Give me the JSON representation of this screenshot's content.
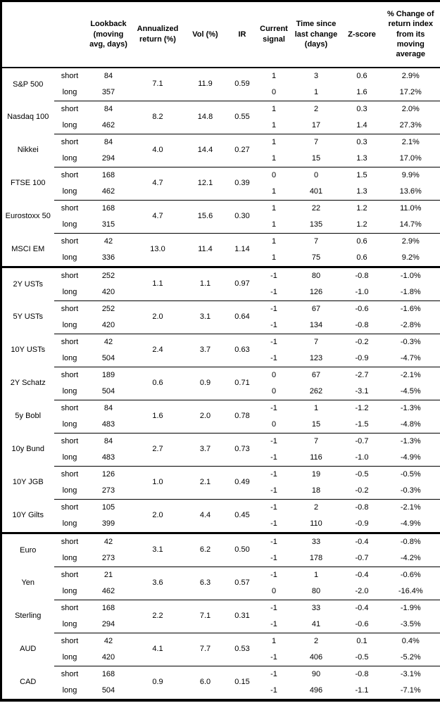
{
  "table": {
    "headers": {
      "asset": "",
      "leg": "",
      "lookback": "Lookback\n(moving\navg, days)",
      "annualized_return": "Annualized\nreturn (%)",
      "vol": "Vol (%)",
      "ir": "IR",
      "signal": "Current\nsignal",
      "time_since": "Time since\nlast change\n(days)",
      "zscore": "Z-score",
      "pct_change": "% Change of\nreturn index\nfrom its\nmoving\naverage"
    },
    "groups": [
      {
        "asset": "S&P 500",
        "section": "equities",
        "annualized_return": "7.1",
        "vol": "11.9",
        "ir": "0.59",
        "rows": [
          {
            "leg": "short",
            "lookback": "84",
            "signal": "1",
            "time": "3",
            "zscore": "0.6",
            "pct": "2.9%"
          },
          {
            "leg": "long",
            "lookback": "357",
            "signal": "0",
            "time": "1",
            "zscore": "1.6",
            "pct": "17.2%"
          }
        ]
      },
      {
        "asset": "Nasdaq 100",
        "section": "equities",
        "annualized_return": "8.2",
        "vol": "14.8",
        "ir": "0.55",
        "rows": [
          {
            "leg": "short",
            "lookback": "84",
            "signal": "1",
            "time": "2",
            "zscore": "0.3",
            "pct": "2.0%"
          },
          {
            "leg": "long",
            "lookback": "462",
            "signal": "1",
            "time": "17",
            "zscore": "1.4",
            "pct": "27.3%"
          }
        ]
      },
      {
        "asset": "Nikkei",
        "section": "equities",
        "annualized_return": "4.0",
        "vol": "14.4",
        "ir": "0.27",
        "rows": [
          {
            "leg": "short",
            "lookback": "84",
            "signal": "1",
            "time": "7",
            "zscore": "0.3",
            "pct": "2.1%"
          },
          {
            "leg": "long",
            "lookback": "294",
            "signal": "1",
            "time": "15",
            "zscore": "1.3",
            "pct": "17.0%"
          }
        ]
      },
      {
        "asset": "FTSE 100",
        "section": "equities",
        "annualized_return": "4.7",
        "vol": "12.1",
        "ir": "0.39",
        "rows": [
          {
            "leg": "short",
            "lookback": "168",
            "signal": "0",
            "time": "0",
            "zscore": "1.5",
            "pct": "9.9%"
          },
          {
            "leg": "long",
            "lookback": "462",
            "signal": "1",
            "time": "401",
            "zscore": "1.3",
            "pct": "13.6%"
          }
        ]
      },
      {
        "asset": "Eurostoxx 50",
        "section": "equities",
        "annualized_return": "4.7",
        "vol": "15.6",
        "ir": "0.30",
        "rows": [
          {
            "leg": "short",
            "lookback": "168",
            "signal": "1",
            "time": "22",
            "zscore": "1.2",
            "pct": "11.0%"
          },
          {
            "leg": "long",
            "lookback": "315",
            "signal": "1",
            "time": "135",
            "zscore": "1.2",
            "pct": "14.7%"
          }
        ]
      },
      {
        "asset": "MSCI EM",
        "section": "equities",
        "annualized_return": "13.0",
        "vol": "11.4",
        "ir": "1.14",
        "rows": [
          {
            "leg": "short",
            "lookback": "42",
            "signal": "1",
            "time": "7",
            "zscore": "0.6",
            "pct": "2.9%"
          },
          {
            "leg": "long",
            "lookback": "336",
            "signal": "1",
            "time": "75",
            "zscore": "0.6",
            "pct": "9.2%"
          }
        ]
      },
      {
        "asset": "2Y USTs",
        "section": "bonds",
        "annualized_return": "1.1",
        "vol": "1.1",
        "ir": "0.97",
        "rows": [
          {
            "leg": "short",
            "lookback": "252",
            "signal": "-1",
            "time": "80",
            "zscore": "-0.8",
            "pct": "-1.0%"
          },
          {
            "leg": "long",
            "lookback": "420",
            "signal": "-1",
            "time": "126",
            "zscore": "-1.0",
            "pct": "-1.8%"
          }
        ]
      },
      {
        "asset": "5Y USTs",
        "section": "bonds",
        "annualized_return": "2.0",
        "vol": "3.1",
        "ir": "0.64",
        "rows": [
          {
            "leg": "short",
            "lookback": "252",
            "signal": "-1",
            "time": "67",
            "zscore": "-0.6",
            "pct": "-1.6%"
          },
          {
            "leg": "long",
            "lookback": "420",
            "signal": "-1",
            "time": "134",
            "zscore": "-0.8",
            "pct": "-2.8%"
          }
        ]
      },
      {
        "asset": "10Y USTs",
        "section": "bonds",
        "annualized_return": "2.4",
        "vol": "3.7",
        "ir": "0.63",
        "rows": [
          {
            "leg": "short",
            "lookback": "42",
            "signal": "-1",
            "time": "7",
            "zscore": "-0.2",
            "pct": "-0.3%"
          },
          {
            "leg": "long",
            "lookback": "504",
            "signal": "-1",
            "time": "123",
            "zscore": "-0.9",
            "pct": "-4.7%"
          }
        ]
      },
      {
        "asset": "2Y Schatz",
        "section": "bonds",
        "annualized_return": "0.6",
        "vol": "0.9",
        "ir": "0.71",
        "rows": [
          {
            "leg": "short",
            "lookback": "189",
            "signal": "0",
            "time": "67",
            "zscore": "-2.7",
            "pct": "-2.1%"
          },
          {
            "leg": "long",
            "lookback": "504",
            "signal": "0",
            "time": "262",
            "zscore": "-3.1",
            "pct": "-4.5%"
          }
        ]
      },
      {
        "asset": "5y Bobl",
        "section": "bonds",
        "annualized_return": "1.6",
        "vol": "2.0",
        "ir": "0.78",
        "rows": [
          {
            "leg": "short",
            "lookback": "84",
            "signal": "-1",
            "time": "1",
            "zscore": "-1.2",
            "pct": "-1.3%"
          },
          {
            "leg": "long",
            "lookback": "483",
            "signal": "0",
            "time": "15",
            "zscore": "-1.5",
            "pct": "-4.8%"
          }
        ]
      },
      {
        "asset": "10y Bund",
        "section": "bonds",
        "annualized_return": "2.7",
        "vol": "3.7",
        "ir": "0.73",
        "rows": [
          {
            "leg": "short",
            "lookback": "84",
            "signal": "-1",
            "time": "7",
            "zscore": "-0.7",
            "pct": "-1.3%"
          },
          {
            "leg": "long",
            "lookback": "483",
            "signal": "-1",
            "time": "116",
            "zscore": "-1.0",
            "pct": "-4.9%"
          }
        ]
      },
      {
        "asset": "10Y JGB",
        "section": "bonds",
        "annualized_return": "1.0",
        "vol": "2.1",
        "ir": "0.49",
        "rows": [
          {
            "leg": "short",
            "lookback": "126",
            "signal": "-1",
            "time": "19",
            "zscore": "-0.5",
            "pct": "-0.5%"
          },
          {
            "leg": "long",
            "lookback": "273",
            "signal": "-1",
            "time": "18",
            "zscore": "-0.2",
            "pct": "-0.3%"
          }
        ]
      },
      {
        "asset": "10Y Gilts",
        "section": "bonds",
        "annualized_return": "2.0",
        "vol": "4.4",
        "ir": "0.45",
        "rows": [
          {
            "leg": "short",
            "lookback": "105",
            "signal": "-1",
            "time": "2",
            "zscore": "-0.8",
            "pct": "-2.1%"
          },
          {
            "leg": "long",
            "lookback": "399",
            "signal": "-1",
            "time": "110",
            "zscore": "-0.9",
            "pct": "-4.9%"
          }
        ]
      },
      {
        "asset": "Euro",
        "section": "fx",
        "annualized_return": "3.1",
        "vol": "6.2",
        "ir": "0.50",
        "rows": [
          {
            "leg": "short",
            "lookback": "42",
            "signal": "-1",
            "time": "33",
            "zscore": "-0.4",
            "pct": "-0.8%"
          },
          {
            "leg": "long",
            "lookback": "273",
            "signal": "-1",
            "time": "178",
            "zscore": "-0.7",
            "pct": "-4.2%"
          }
        ]
      },
      {
        "asset": "Yen",
        "section": "fx",
        "annualized_return": "3.6",
        "vol": "6.3",
        "ir": "0.57",
        "rows": [
          {
            "leg": "short",
            "lookback": "21",
            "signal": "-1",
            "time": "1",
            "zscore": "-0.4",
            "pct": "-0.6%"
          },
          {
            "leg": "long",
            "lookback": "462",
            "signal": "0",
            "time": "80",
            "zscore": "-2.0",
            "pct": "-16.4%"
          }
        ]
      },
      {
        "asset": "Sterling",
        "section": "fx",
        "annualized_return": "2.2",
        "vol": "7.1",
        "ir": "0.31",
        "rows": [
          {
            "leg": "short",
            "lookback": "168",
            "signal": "-1",
            "time": "33",
            "zscore": "-0.4",
            "pct": "-1.9%"
          },
          {
            "leg": "long",
            "lookback": "294",
            "signal": "-1",
            "time": "41",
            "zscore": "-0.6",
            "pct": "-3.5%"
          }
        ]
      },
      {
        "asset": "AUD",
        "section": "fx",
        "annualized_return": "4.1",
        "vol": "7.7",
        "ir": "0.53",
        "rows": [
          {
            "leg": "short",
            "lookback": "42",
            "signal": "1",
            "time": "2",
            "zscore": "0.1",
            "pct": "0.4%"
          },
          {
            "leg": "long",
            "lookback": "420",
            "signal": "-1",
            "time": "406",
            "zscore": "-0.5",
            "pct": "-5.2%"
          }
        ]
      },
      {
        "asset": "CAD",
        "section": "fx",
        "annualized_return": "0.9",
        "vol": "6.0",
        "ir": "0.15",
        "rows": [
          {
            "leg": "short",
            "lookback": "168",
            "signal": "-1",
            "time": "90",
            "zscore": "-0.8",
            "pct": "-3.1%"
          },
          {
            "leg": "long",
            "lookback": "504",
            "signal": "-1",
            "time": "496",
            "zscore": "-1.1",
            "pct": "-7.1%"
          }
        ]
      }
    ]
  }
}
